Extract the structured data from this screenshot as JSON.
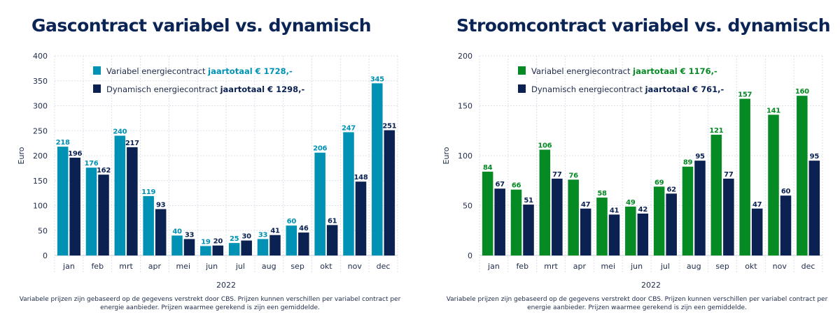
{
  "chart_data": [
    {
      "type": "bar",
      "title": "Gascontract variabel vs. dynamisch",
      "xlabel": "2022",
      "ylabel": "Euro",
      "ylim": [
        0,
        400
      ],
      "yticks": [
        0,
        50,
        100,
        150,
        200,
        250,
        300,
        350,
        400
      ],
      "grid": true,
      "legend_position": "top-left",
      "categories": [
        "jan",
        "feb",
        "mrt",
        "apr",
        "mei",
        "jun",
        "jul",
        "aug",
        "sep",
        "okt",
        "nov",
        "dec"
      ],
      "series": [
        {
          "name": "Variabel energiecontract",
          "total_label": "jaartotaal € 1728,-",
          "color": "#0092b4",
          "values": [
            218,
            176,
            240,
            119,
            40,
            19,
            25,
            33,
            60,
            206,
            247,
            345
          ]
        },
        {
          "name": "Dynamisch energiecontract",
          "total_label": "jaartotaal € 1298,-",
          "color": "#0a2152",
          "values": [
            196,
            162,
            217,
            93,
            33,
            20,
            30,
            41,
            46,
            61,
            148,
            251
          ]
        }
      ],
      "footnote": [
        "Variabele prijzen zijn gebaseerd op de gegevens verstrekt door CBS. Prijzen kunnen verschillen per variabel contract per",
        "energie aanbieder. Prijzen waarmee gerekend is zijn een gemiddelde."
      ]
    },
    {
      "type": "bar",
      "title": "Stroomcontract variabel vs. dynamisch",
      "xlabel": "2022",
      "ylabel": "Euro",
      "ylim": [
        0,
        200
      ],
      "yticks": [
        0,
        50,
        100,
        150,
        200
      ],
      "grid": true,
      "legend_position": "top-left",
      "categories": [
        "jan",
        "feb",
        "mrt",
        "apr",
        "mei",
        "jun",
        "jul",
        "aug",
        "sep",
        "okt",
        "nov",
        "dec"
      ],
      "series": [
        {
          "name": "Variabel energiecontract",
          "total_label": "jaartotaal € 1176,-",
          "color": "#058a24",
          "values": [
            84,
            66,
            106,
            76,
            58,
            49,
            69,
            89,
            121,
            157,
            141,
            160
          ]
        },
        {
          "name": "Dynamisch energiecontract",
          "total_label": "jaartotaal € 761,-",
          "color": "#0a2152",
          "values": [
            67,
            51,
            77,
            47,
            41,
            42,
            62,
            95,
            77,
            47,
            60,
            95
          ]
        }
      ],
      "footnote": [
        "Variabele prijzen zijn gebaseerd op de gegevens verstrekt door CBS. Prijzen kunnen verschillen per variabel contract per",
        "energie aanbieder. Prijzen waarmee gerekend is zijn een gemiddelde."
      ]
    }
  ]
}
